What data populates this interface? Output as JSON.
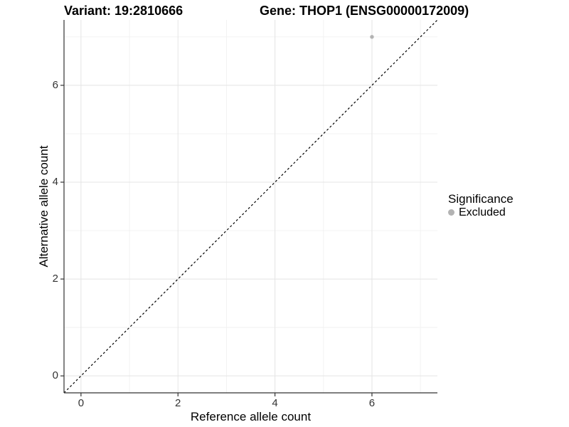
{
  "chart_data": {
    "type": "scatter",
    "title_left": "Variant: 19:2810666",
    "title_right": "Gene: THOP1 (ENSG00000172009)",
    "xlabel": "Reference allele count",
    "ylabel": "Alternative allele count",
    "xlim": [
      -0.35,
      7.35
    ],
    "ylim": [
      -0.35,
      7.35
    ],
    "x_ticks": [
      0,
      2,
      4,
      6
    ],
    "y_ticks": [
      0,
      2,
      4,
      6
    ],
    "x_minor_ticks": [
      1,
      3,
      5,
      7
    ],
    "y_minor_ticks": [
      1,
      3,
      5,
      7
    ],
    "grid": "on",
    "series": [
      {
        "name": "Excluded",
        "color": "#b3b3b3",
        "points": [
          {
            "x": 6,
            "y": 7
          }
        ]
      }
    ],
    "reference_line": {
      "kind": "identity",
      "slope": 1,
      "intercept": 0,
      "style": "dashed",
      "color": "#000000"
    },
    "legend": {
      "title": "Significance",
      "position": "right"
    },
    "colors": {
      "grid_major": "#e4e4e4",
      "grid_minor": "#f1f1f1",
      "axis_line": "#333333",
      "tick_mark": "#333333",
      "tick_text": "#333333",
      "title_text": "#000000"
    }
  }
}
